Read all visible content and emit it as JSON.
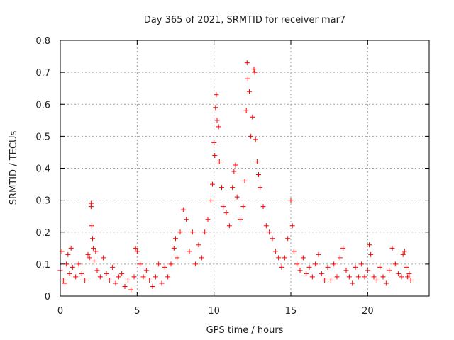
{
  "chart_data": {
    "type": "scatter",
    "title": "Day 365 of 2021, SRMTID for receiver mar7",
    "xlabel": "GPS time / hours",
    "ylabel": "SRMTID / TECUs",
    "xlim": [
      0,
      24
    ],
    "ylim": [
      0,
      0.8
    ],
    "xticks": [
      0,
      5,
      10,
      15,
      20
    ],
    "yticks": [
      0,
      0.1,
      0.2,
      0.3,
      0.4,
      0.5,
      0.6,
      0.7,
      0.8
    ],
    "xtick_labels": [
      "0",
      "5",
      "10",
      "15",
      "20"
    ],
    "ytick_labels": [
      "0",
      "0.1",
      "0.2",
      "0.3",
      "0.4",
      "0.5",
      "0.6",
      "0.7",
      "0.8"
    ],
    "grid": true,
    "marker": "+",
    "marker_color": "#ff0000",
    "data_extent_hours": [
      0,
      22.8
    ],
    "series": [
      {
        "name": "SRMTID",
        "points": [
          [
            0.0,
            0.08
          ],
          [
            0.1,
            0.14
          ],
          [
            0.2,
            0.05
          ],
          [
            0.3,
            0.04
          ],
          [
            0.4,
            0.1
          ],
          [
            0.5,
            0.13
          ],
          [
            0.6,
            0.07
          ],
          [
            0.7,
            0.15
          ],
          [
            0.8,
            0.09
          ],
          [
            1.0,
            0.06
          ],
          [
            1.2,
            0.1
          ],
          [
            1.4,
            0.07
          ],
          [
            1.6,
            0.05
          ],
          [
            1.8,
            0.13
          ],
          [
            1.9,
            0.12
          ],
          [
            2.0,
            0.28
          ],
          [
            2.0,
            0.29
          ],
          [
            2.05,
            0.22
          ],
          [
            2.1,
            0.18
          ],
          [
            2.15,
            0.15
          ],
          [
            2.2,
            0.11
          ],
          [
            2.3,
            0.14
          ],
          [
            2.4,
            0.08
          ],
          [
            2.6,
            0.06
          ],
          [
            2.8,
            0.12
          ],
          [
            3.0,
            0.07
          ],
          [
            3.2,
            0.05
          ],
          [
            3.4,
            0.09
          ],
          [
            3.6,
            0.04
          ],
          [
            3.8,
            0.06
          ],
          [
            4.0,
            0.07
          ],
          [
            4.2,
            0.03
          ],
          [
            4.4,
            0.05
          ],
          [
            4.6,
            0.02
          ],
          [
            4.8,
            0.06
          ],
          [
            4.9,
            0.15
          ],
          [
            5.0,
            0.14
          ],
          [
            5.2,
            0.1
          ],
          [
            5.4,
            0.06
          ],
          [
            5.6,
            0.08
          ],
          [
            5.8,
            0.05
          ],
          [
            6.0,
            0.03
          ],
          [
            6.2,
            0.06
          ],
          [
            6.4,
            0.1
          ],
          [
            6.6,
            0.04
          ],
          [
            6.8,
            0.09
          ],
          [
            7.0,
            0.06
          ],
          [
            7.2,
            0.1
          ],
          [
            7.4,
            0.15
          ],
          [
            7.5,
            0.18
          ],
          [
            7.6,
            0.12
          ],
          [
            7.8,
            0.2
          ],
          [
            8.0,
            0.27
          ],
          [
            8.2,
            0.24
          ],
          [
            8.4,
            0.14
          ],
          [
            8.6,
            0.2
          ],
          [
            8.8,
            0.1
          ],
          [
            9.0,
            0.16
          ],
          [
            9.2,
            0.12
          ],
          [
            9.4,
            0.2
          ],
          [
            9.6,
            0.24
          ],
          [
            9.8,
            0.3
          ],
          [
            9.9,
            0.35
          ],
          [
            10.0,
            0.48
          ],
          [
            10.05,
            0.44
          ],
          [
            10.1,
            0.59
          ],
          [
            10.15,
            0.63
          ],
          [
            10.2,
            0.55
          ],
          [
            10.3,
            0.53
          ],
          [
            10.35,
            0.42
          ],
          [
            10.5,
            0.34
          ],
          [
            10.6,
            0.28
          ],
          [
            10.8,
            0.26
          ],
          [
            11.0,
            0.22
          ],
          [
            11.2,
            0.34
          ],
          [
            11.3,
            0.39
          ],
          [
            11.4,
            0.41
          ],
          [
            11.5,
            0.31
          ],
          [
            11.7,
            0.24
          ],
          [
            11.9,
            0.28
          ],
          [
            12.0,
            0.36
          ],
          [
            12.1,
            0.58
          ],
          [
            12.15,
            0.73
          ],
          [
            12.2,
            0.68
          ],
          [
            12.3,
            0.64
          ],
          [
            12.4,
            0.5
          ],
          [
            12.5,
            0.56
          ],
          [
            12.6,
            0.71
          ],
          [
            12.65,
            0.7
          ],
          [
            12.7,
            0.49
          ],
          [
            12.8,
            0.42
          ],
          [
            12.9,
            0.38
          ],
          [
            13.0,
            0.34
          ],
          [
            13.2,
            0.28
          ],
          [
            13.4,
            0.22
          ],
          [
            13.6,
            0.2
          ],
          [
            13.8,
            0.18
          ],
          [
            14.0,
            0.14
          ],
          [
            14.2,
            0.12
          ],
          [
            14.4,
            0.09
          ],
          [
            14.6,
            0.12
          ],
          [
            14.8,
            0.18
          ],
          [
            15.0,
            0.3
          ],
          [
            15.1,
            0.22
          ],
          [
            15.2,
            0.14
          ],
          [
            15.4,
            0.1
          ],
          [
            15.6,
            0.08
          ],
          [
            15.8,
            0.12
          ],
          [
            16.0,
            0.07
          ],
          [
            16.2,
            0.09
          ],
          [
            16.4,
            0.06
          ],
          [
            16.6,
            0.1
          ],
          [
            16.8,
            0.13
          ],
          [
            17.0,
            0.07
          ],
          [
            17.2,
            0.05
          ],
          [
            17.4,
            0.09
          ],
          [
            17.6,
            0.05
          ],
          [
            17.8,
            0.1
          ],
          [
            18.0,
            0.06
          ],
          [
            18.2,
            0.12
          ],
          [
            18.4,
            0.15
          ],
          [
            18.6,
            0.08
          ],
          [
            18.8,
            0.06
          ],
          [
            19.0,
            0.04
          ],
          [
            19.2,
            0.09
          ],
          [
            19.4,
            0.06
          ],
          [
            19.6,
            0.1
          ],
          [
            19.8,
            0.06
          ],
          [
            20.0,
            0.08
          ],
          [
            20.1,
            0.16
          ],
          [
            20.2,
            0.13
          ],
          [
            20.4,
            0.06
          ],
          [
            20.6,
            0.05
          ],
          [
            20.8,
            0.09
          ],
          [
            21.0,
            0.06
          ],
          [
            21.2,
            0.04
          ],
          [
            21.4,
            0.08
          ],
          [
            21.6,
            0.15
          ],
          [
            21.8,
            0.1
          ],
          [
            22.0,
            0.07
          ],
          [
            22.2,
            0.06
          ],
          [
            22.3,
            0.13
          ],
          [
            22.4,
            0.14
          ],
          [
            22.5,
            0.09
          ],
          [
            22.6,
            0.06
          ],
          [
            22.7,
            0.07
          ],
          [
            22.8,
            0.05
          ]
        ]
      }
    ]
  }
}
